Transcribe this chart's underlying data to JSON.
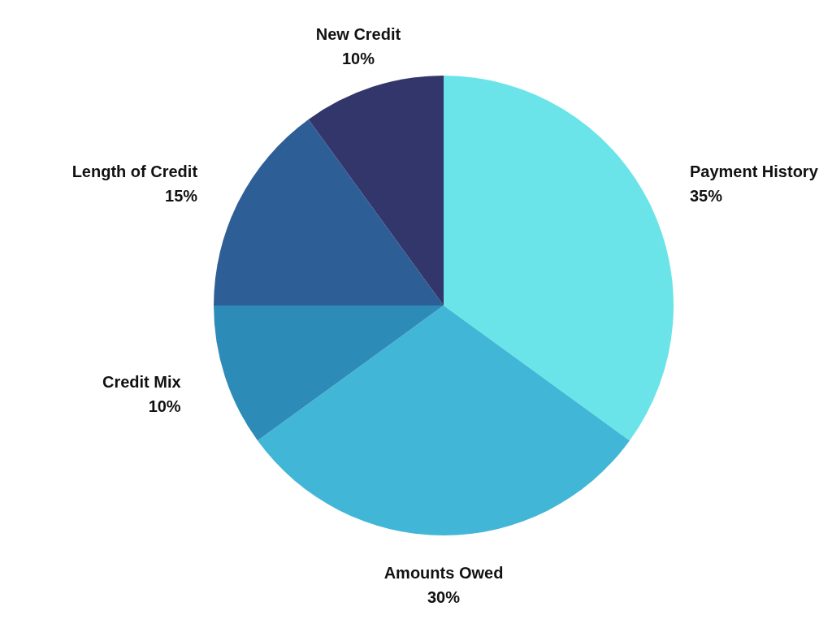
{
  "chart_data": {
    "type": "pie",
    "categories": [
      "Payment History",
      "Amounts Owed",
      "Credit Mix",
      "Length of Credit",
      "New Credit"
    ],
    "values": [
      35,
      30,
      10,
      15,
      10
    ],
    "colors": [
      "#6ae4e8",
      "#42b6d6",
      "#2d8bb8",
      "#2e5e96",
      "#32366b"
    ],
    "value_labels": [
      "35%",
      "30%",
      "10%",
      "15%",
      "10%"
    ]
  }
}
